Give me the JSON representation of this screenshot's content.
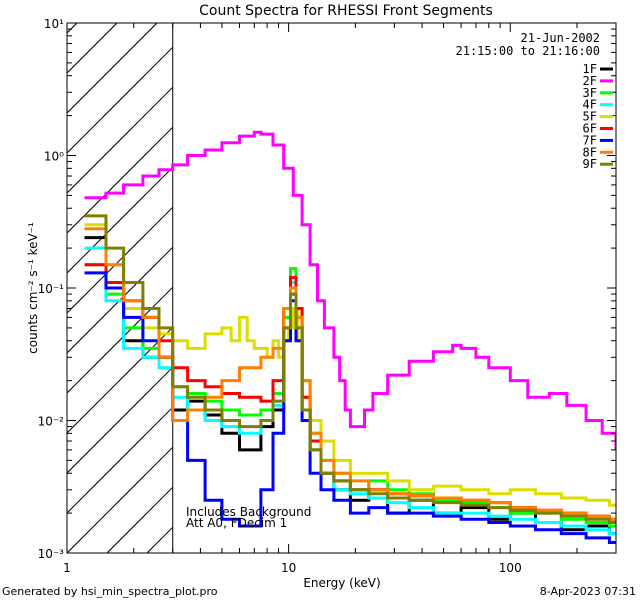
{
  "chart_data": {
    "type": "line",
    "title": "Count Spectra for RHESSI Front Segments",
    "xlabel": "Energy (keV)",
    "ylabel": "counts cm⁻² s⁻¹ keV⁻¹",
    "xscale": "log",
    "yscale": "log",
    "xlim": [
      1,
      300
    ],
    "ylim": [
      0.001,
      10
    ],
    "x_ticks": [
      {
        "value": 1,
        "label": "1"
      },
      {
        "value": 10,
        "label": "10"
      },
      {
        "value": 100,
        "label": "100"
      }
    ],
    "y_ticks": [
      {
        "value": 0.001,
        "label": "10⁻³"
      },
      {
        "value": 0.01,
        "label": "10⁻²"
      },
      {
        "value": 0.1,
        "label": "10⁻¹"
      },
      {
        "value": 1,
        "label": "10⁰"
      },
      {
        "value": 10,
        "label": "10¹"
      }
    ],
    "date": "21-Jun-2002",
    "time_range": "21:15:00 to 21:16:00",
    "shaded_region_xmax_keV": 3,
    "annotations": [
      "Includes Background",
      "Att A0, FDecim 1"
    ],
    "legend_position": "top-right",
    "series": [
      {
        "name": "1F",
        "color": "#000000",
        "x": [
          1.2,
          1.5,
          1.8,
          2.2,
          2.6,
          3.0,
          3.5,
          4.2,
          5.0,
          6.0,
          7.5,
          8.5,
          9.5,
          10.2,
          10.8,
          11.5,
          12.5,
          14,
          16,
          19,
          23,
          28,
          35,
          45,
          60,
          80,
          100,
          130,
          170,
          220,
          280
        ],
        "y": [
          0.24,
          0.1,
          0.04,
          0.03,
          0.03,
          0.012,
          0.014,
          0.011,
          0.008,
          0.006,
          0.009,
          0.012,
          0.05,
          0.09,
          0.05,
          0.012,
          0.006,
          0.004,
          0.003,
          0.0025,
          0.003,
          0.002,
          0.0025,
          0.002,
          0.0022,
          0.0018,
          0.002,
          0.0017,
          0.0015,
          0.0016,
          0.0014
        ]
      },
      {
        "name": "2F",
        "color": "#ff00ff",
        "x": [
          1.2,
          1.5,
          1.8,
          2.2,
          2.6,
          3.0,
          3.5,
          4.2,
          5.0,
          6.0,
          7.0,
          7.5,
          8.5,
          9.5,
          10.5,
          11.5,
          12.5,
          13.5,
          14.5,
          16,
          17,
          18,
          19,
          20,
          22,
          24,
          28,
          35,
          45,
          55,
          60,
          70,
          80,
          100,
          120,
          150,
          180,
          220,
          260,
          300
        ],
        "y": [
          0.48,
          0.52,
          0.6,
          0.7,
          0.78,
          0.85,
          1.0,
          1.1,
          1.25,
          1.4,
          1.5,
          1.45,
          1.2,
          0.8,
          0.5,
          0.3,
          0.15,
          0.08,
          0.05,
          0.03,
          0.02,
          0.012,
          0.009,
          0.009,
          0.012,
          0.016,
          0.022,
          0.028,
          0.033,
          0.037,
          0.035,
          0.03,
          0.025,
          0.02,
          0.015,
          0.016,
          0.013,
          0.01,
          0.008,
          0.006
        ]
      },
      {
        "name": "3F",
        "color": "#00ff00",
        "x": [
          1.2,
          1.5,
          1.8,
          2.2,
          2.6,
          3.0,
          3.5,
          4.2,
          5.0,
          6.0,
          7.5,
          8.5,
          9.5,
          10.2,
          10.8,
          11.5,
          12.5,
          14,
          16,
          19,
          23,
          28,
          35,
          45,
          60,
          80,
          100,
          130,
          170,
          220,
          280
        ],
        "y": [
          0.15,
          0.09,
          0.05,
          0.035,
          0.03,
          0.018,
          0.016,
          0.014,
          0.012,
          0.011,
          0.012,
          0.016,
          0.06,
          0.14,
          0.07,
          0.015,
          0.008,
          0.005,
          0.004,
          0.003,
          0.0035,
          0.003,
          0.0028,
          0.0025,
          0.0024,
          0.0022,
          0.002,
          0.002,
          0.0018,
          0.0017,
          0.0016
        ]
      },
      {
        "name": "4F",
        "color": "#00ffff",
        "x": [
          1.2,
          1.5,
          1.8,
          2.2,
          2.6,
          3.0,
          3.5,
          4.2,
          5.0,
          6.0,
          7.5,
          8.5,
          9.5,
          10.2,
          10.8,
          11.5,
          12.5,
          14,
          16,
          19,
          23,
          28,
          35,
          45,
          60,
          80,
          100,
          130,
          170,
          220,
          280
        ],
        "y": [
          0.2,
          0.08,
          0.035,
          0.03,
          0.025,
          0.015,
          0.012,
          0.01,
          0.009,
          0.008,
          0.01,
          0.013,
          0.05,
          0.11,
          0.06,
          0.012,
          0.006,
          0.004,
          0.003,
          0.0028,
          0.0026,
          0.0024,
          0.0022,
          0.002,
          0.002,
          0.0019,
          0.0018,
          0.0017,
          0.0016,
          0.0015,
          0.0014
        ]
      },
      {
        "name": "5F",
        "color": "#dddd00",
        "x": [
          1.2,
          1.5,
          1.8,
          2.2,
          2.6,
          3.0,
          3.5,
          4.2,
          5.0,
          5.5,
          6.0,
          6.5,
          7.0,
          8.0,
          8.5,
          9.0,
          9.5,
          10.0,
          10.5,
          11.0,
          11.5,
          12.5,
          14,
          16,
          19,
          23,
          28,
          35,
          45,
          60,
          80,
          100,
          130,
          170,
          220,
          280
        ],
        "y": [
          0.3,
          0.15,
          0.07,
          0.05,
          0.045,
          0.04,
          0.035,
          0.045,
          0.05,
          0.04,
          0.06,
          0.04,
          0.035,
          0.03,
          0.04,
          0.03,
          0.04,
          0.05,
          0.07,
          0.04,
          0.02,
          0.01,
          0.007,
          0.005,
          0.004,
          0.004,
          0.0035,
          0.003,
          0.0032,
          0.003,
          0.0028,
          0.003,
          0.0028,
          0.0026,
          0.0025,
          0.0023
        ]
      },
      {
        "name": "6F",
        "color": "#ff0000",
        "x": [
          1.2,
          1.5,
          1.8,
          2.2,
          2.6,
          3.0,
          3.5,
          4.2,
          5.0,
          6.0,
          7.5,
          8.5,
          9.5,
          10.2,
          10.8,
          11.5,
          12.5,
          14,
          16,
          19,
          23,
          28,
          35,
          45,
          60,
          80,
          100,
          130,
          170,
          220,
          280
        ],
        "y": [
          0.15,
          0.11,
          0.08,
          0.06,
          0.04,
          0.025,
          0.02,
          0.018,
          0.016,
          0.015,
          0.014,
          0.02,
          0.07,
          0.12,
          0.07,
          0.015,
          0.007,
          0.004,
          0.0035,
          0.003,
          0.003,
          0.0028,
          0.0027,
          0.0026,
          0.0025,
          0.0024,
          0.0022,
          0.0021,
          0.002,
          0.0019,
          0.0018
        ]
      },
      {
        "name": "7F",
        "color": "#0000ff",
        "x": [
          1.2,
          1.5,
          1.8,
          2.2,
          2.6,
          3.0,
          3.5,
          4.2,
          5.0,
          6.0,
          7.5,
          8.5,
          9.5,
          10.2,
          10.8,
          11.5,
          12.5,
          14,
          16,
          19,
          23,
          28,
          35,
          45,
          60,
          80,
          100,
          130,
          170,
          220,
          280
        ],
        "y": [
          0.13,
          0.1,
          0.06,
          0.04,
          0.03,
          0.01,
          0.005,
          0.0025,
          0.0018,
          0.0016,
          0.003,
          0.008,
          0.04,
          0.08,
          0.04,
          0.01,
          0.004,
          0.003,
          0.0025,
          0.002,
          0.0022,
          0.002,
          0.002,
          0.0019,
          0.0018,
          0.0017,
          0.0016,
          0.0015,
          0.0014,
          0.0013,
          0.0012
        ]
      },
      {
        "name": "8F",
        "color": "#ff8000",
        "x": [
          1.2,
          1.5,
          1.8,
          2.2,
          2.6,
          3.0,
          3.5,
          4.2,
          5.0,
          6.0,
          7.5,
          8.5,
          9.5,
          10.2,
          10.8,
          11.5,
          12.5,
          14,
          16,
          19,
          23,
          28,
          35,
          45,
          60,
          80,
          100,
          130,
          170,
          220,
          280
        ],
        "y": [
          0.28,
          0.15,
          0.08,
          0.06,
          0.03,
          0.01,
          0.012,
          0.015,
          0.02,
          0.025,
          0.03,
          0.035,
          0.07,
          0.1,
          0.06,
          0.02,
          0.008,
          0.005,
          0.004,
          0.0035,
          0.003,
          0.0028,
          0.0027,
          0.0026,
          0.0025,
          0.0024,
          0.0022,
          0.0021,
          0.002,
          0.0019,
          0.0018
        ]
      },
      {
        "name": "9F",
        "color": "#808000",
        "x": [
          1.2,
          1.5,
          1.8,
          2.2,
          2.6,
          3.0,
          3.5,
          4.2,
          5.0,
          6.0,
          7.5,
          8.5,
          9.5,
          10.2,
          10.8,
          11.5,
          12.5,
          14,
          16,
          19,
          23,
          28,
          35,
          45,
          60,
          80,
          100,
          130,
          170,
          220,
          280
        ],
        "y": [
          0.35,
          0.2,
          0.11,
          0.07,
          0.05,
          0.018,
          0.015,
          0.012,
          0.01,
          0.009,
          0.01,
          0.014,
          0.05,
          0.09,
          0.05,
          0.012,
          0.006,
          0.004,
          0.0035,
          0.003,
          0.0028,
          0.0026,
          0.0025,
          0.0024,
          0.0023,
          0.0022,
          0.0021,
          0.002,
          0.0019,
          0.0018,
          0.0017
        ]
      }
    ]
  },
  "footer": {
    "generated_by": "Generated by hsi_min_spectra_plot.pro",
    "timestamp": "8-Apr-2023 07:31"
  }
}
